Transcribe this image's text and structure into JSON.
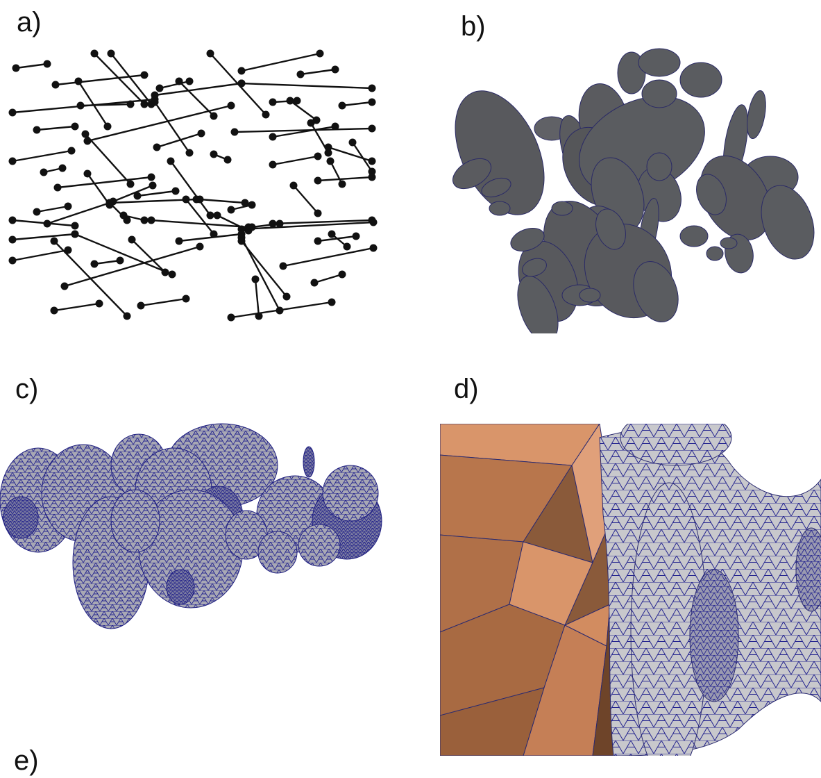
{
  "labels": {
    "a": "a)",
    "b": "b)",
    "c": "c)",
    "d": "d)",
    "e": "e)"
  },
  "colors": {
    "ink": "#111111",
    "fracture_gray": "#5a5c60",
    "mesh_blue": "#24248f",
    "mesh_gray": "#c8c8cc",
    "matrix_orange": "#d9956a",
    "matrix_dark": "#8a5a3a"
  }
}
